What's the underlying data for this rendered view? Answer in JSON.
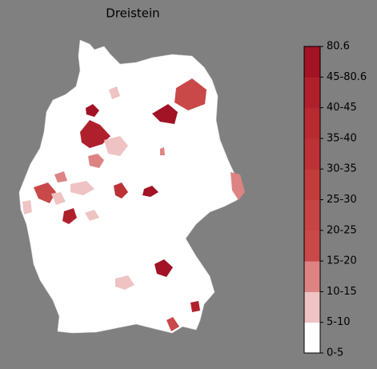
{
  "title": "Dreistein",
  "colorbar": {
    "ticks": [
      "0-5",
      "5-10",
      "10-15",
      "15-20",
      "20-25",
      "25-30",
      "30-35",
      "35-40",
      "40-45",
      "45-80.6",
      "80.6"
    ],
    "colors": [
      "#ffffff",
      "#efc3c3",
      "#dd8383",
      "#c94848",
      "#c64444",
      "#c23c3c",
      "#bd3236",
      "#b72a31",
      "#b0202c",
      "#a11325"
    ]
  }
}
